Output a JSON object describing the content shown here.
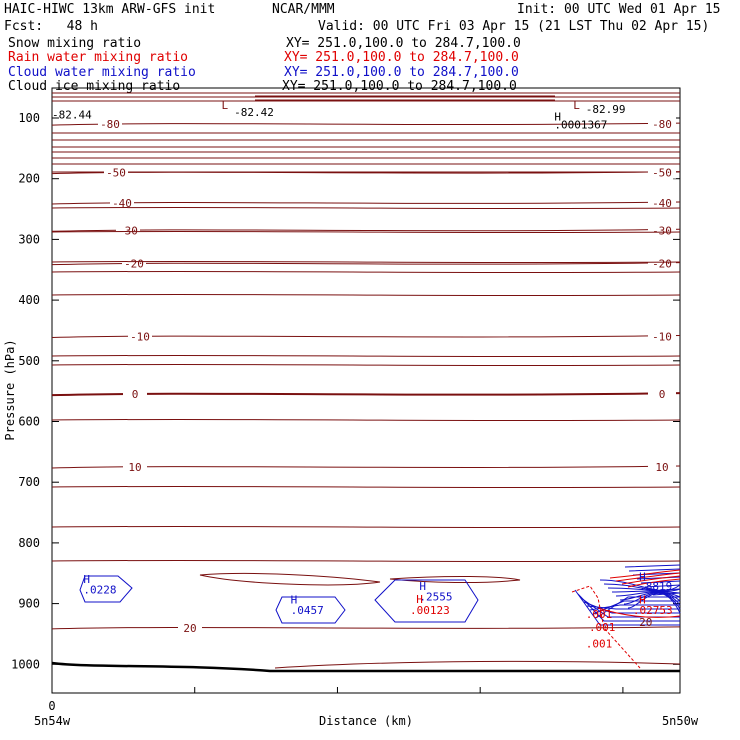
{
  "header": {
    "title": "HAIC-HIWC 13km ARW-GFS init",
    "org": "NCAR/MMM",
    "init": "Init: 00 UTC Wed 01 Apr 15",
    "fcst": "Fcst:   48 h",
    "valid": "Valid: 00 UTC Fri 03 Apr 15 (21 LST Thu 02 Apr 15)"
  },
  "legend": [
    {
      "name": "Snow mixing ratio",
      "xy": "XY= 251.0,100.0 to 284.7,100.0",
      "color": "#000000"
    },
    {
      "name": "Rain water mixing ratio",
      "xy": "XY= 251.0,100.0 to 284.7,100.0",
      "color": "#e00000"
    },
    {
      "name": "Cloud water mixing ratio",
      "xy": "XY= 251.0,100.0 to 284.7,100.0",
      "color": "#1010c8"
    },
    {
      "name": "Cloud ice mixing ratio",
      "xy": "XY= 251.0,100.0 to 284.7,100.0",
      "color": "#000000"
    }
  ],
  "chart_data": {
    "type": "contour-cross-section",
    "xlabel": "Distance (km)",
    "ylabel": "Pressure (hPa)",
    "ylim": [
      1050,
      55
    ],
    "yticks": [
      100,
      200,
      300,
      400,
      500,
      600,
      700,
      800,
      900,
      1000
    ],
    "x_start_label": "0",
    "x_end_labels": [
      "5n54w",
      "5n50w"
    ],
    "isotherm_color": "#7a1010",
    "temperature_contours": [
      {
        "value": -80,
        "label": "-80",
        "p": 110
      },
      {
        "value": -50,
        "label": "-50",
        "p": 190
      },
      {
        "value": -40,
        "label": "-40",
        "p": 240
      },
      {
        "value": -30,
        "label": "-30",
        "p": 285
      },
      {
        "value": -20,
        "label": "-20",
        "p": 340
      },
      {
        "value": -10,
        "label": "-10",
        "p": 460
      },
      {
        "value": 0,
        "label": "0",
        "p": 555
      },
      {
        "value": 10,
        "label": "10",
        "p": 675
      },
      {
        "value": 20,
        "label": "20",
        "p": 940
      }
    ],
    "annotations": [
      {
        "text": "L",
        "p": 85,
        "x": 0.27,
        "color": "#7a1010"
      },
      {
        "text": "-82.42",
        "p": 97,
        "x": 0.29,
        "color": "#000000"
      },
      {
        "text": "L",
        "p": 85,
        "x": 0.83,
        "color": "#7a1010"
      },
      {
        "text": "-82.99",
        "p": 92,
        "x": 0.85,
        "color": "#000000"
      },
      {
        "text": "H",
        "p": 104,
        "x": 0.8,
        "color": "#000000"
      },
      {
        "text": ".0001367",
        "p": 117,
        "x": 0.8,
        "color": "#000000"
      },
      {
        "text": "-82.44",
        "p": 101,
        "x": 0.0,
        "color": "#000000"
      },
      {
        "text": "H",
        "p": 866,
        "x": 0.05,
        "color": "#1010c8"
      },
      {
        "text": ".0228",
        "p": 883,
        "x": 0.05,
        "color": "#1010c8"
      },
      {
        "text": "H",
        "p": 900,
        "x": 0.38,
        "color": "#1010c8"
      },
      {
        "text": ".0457",
        "p": 917,
        "x": 0.38,
        "color": "#1010c8"
      },
      {
        "text": "H",
        "p": 878,
        "x": 0.585,
        "color": "#1010c8"
      },
      {
        "text": ".2555",
        "p": 895,
        "x": 0.585,
        "color": "#1010c8"
      },
      {
        "text": "H",
        "p": 899,
        "x": 0.58,
        "color": "#e00000"
      },
      {
        "text": ".00123",
        "p": 917,
        "x": 0.57,
        "color": "#e00000"
      },
      {
        "text": "H",
        "p": 862,
        "x": 0.935,
        "color": "#1010c8"
      },
      {
        "text": ".8819",
        "p": 878,
        "x": 0.935,
        "color": "#1010c8"
      },
      {
        "text": "H",
        "p": 900,
        "x": 0.935,
        "color": "#e00000"
      },
      {
        "text": ".02753",
        "p": 917,
        "x": 0.925,
        "color": "#e00000"
      },
      {
        "text": ".001",
        "p": 924,
        "x": 0.85,
        "color": "#e00000"
      },
      {
        "text": ".001",
        "p": 945,
        "x": 0.855,
        "color": "#e00000"
      },
      {
        "text": ".001",
        "p": 972,
        "x": 0.85,
        "color": "#e00000"
      },
      {
        "text": "20",
        "p": 937,
        "x": 0.935,
        "color": "#7a1010"
      }
    ]
  }
}
